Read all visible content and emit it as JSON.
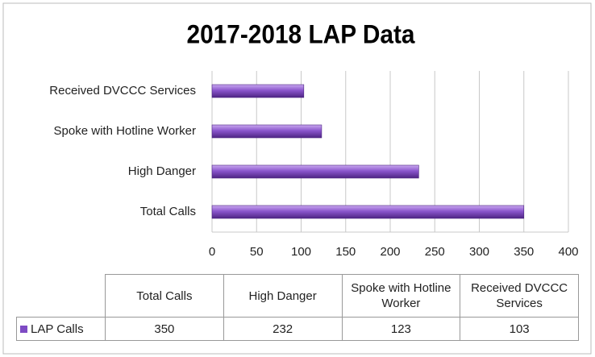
{
  "chart_data": {
    "type": "hbar",
    "title": "2017-2018 LAP Data",
    "categories": [
      "Total Calls",
      "High Danger",
      "Spoke with Hotline Worker",
      "Received DVCCC Services"
    ],
    "series": [
      {
        "name": "LAP Calls",
        "color": "#7e4bc4",
        "values": [
          350,
          232,
          123,
          103
        ]
      }
    ],
    "xlim": [
      0,
      400
    ],
    "xticks": [
      0,
      50,
      100,
      150,
      200,
      250,
      300,
      350,
      400
    ],
    "grid": true
  }
}
